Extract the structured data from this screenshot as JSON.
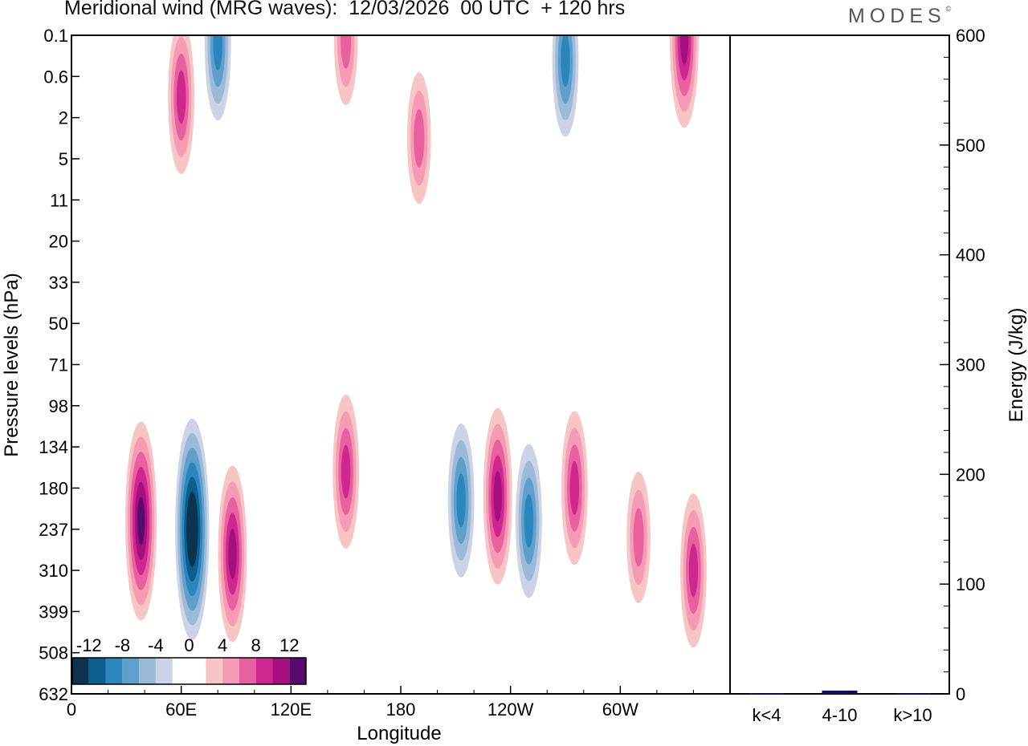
{
  "header": {
    "title": "Meridional wind (MRG waves):  12/03/2026  00 UTC  + 120 hrs",
    "brand": "MODES",
    "brand_mark": "©"
  },
  "chart_data": [
    {
      "type": "heatmap",
      "title": "Meridional wind (MRG waves)",
      "xlabel": "Longitude",
      "ylabel": "Pressure levels (hPa)",
      "x_ticks": [
        "0",
        "60E",
        "120E",
        "180",
        "120W",
        "60W"
      ],
      "x_tick_lon": [
        0,
        60,
        120,
        180,
        240,
        300
      ],
      "xlim": [
        0,
        360
      ],
      "y_ticks": [
        "0.1",
        "0.6",
        "2",
        "5",
        "11",
        "20",
        "33",
        "50",
        "71",
        "98",
        "134",
        "180",
        "237",
        "310",
        "399",
        "508",
        "632"
      ],
      "colorbar": {
        "labels": [
          "-12",
          "-8",
          "-4",
          "0",
          "4",
          "8",
          "12"
        ],
        "levels": [
          -14,
          -12,
          -10,
          -8,
          -6,
          -4,
          -2,
          0,
          2,
          4,
          6,
          8,
          10,
          12,
          14
        ],
        "colors": [
          "#0c3350",
          "#0c5e8c",
          "#2a86bd",
          "#5f9fcb",
          "#9bbad8",
          "#cdd3e6",
          "#ffffff",
          "#ffffff",
          "#f8c5c5",
          "#f69bb6",
          "#e9609f",
          "#cf2690",
          "#a60f7e",
          "#5a0a6e"
        ]
      },
      "anomalies": [
        {
          "lon": 38,
          "level_index": 11.8,
          "value": 11
        },
        {
          "lon": 66,
          "level_index": 12.0,
          "value": -14
        },
        {
          "lon": 88,
          "level_index": 12.6,
          "value": 10
        },
        {
          "lon": 150,
          "level_index": 10.6,
          "value": 8
        },
        {
          "lon": 213,
          "level_index": 11.3,
          "value": -8
        },
        {
          "lon": 233,
          "level_index": 11.2,
          "value": 10
        },
        {
          "lon": 250,
          "level_index": 11.8,
          "value": -7
        },
        {
          "lon": 275,
          "level_index": 11.0,
          "value": 7
        },
        {
          "lon": 310,
          "level_index": 12.2,
          "value": 6
        },
        {
          "lon": 340,
          "level_index": 13.0,
          "value": 7
        },
        {
          "lon": 80,
          "level_index": 0.2,
          "value": -8
        },
        {
          "lon": 150,
          "level_index": 0.1,
          "value": 6
        },
        {
          "lon": 270,
          "level_index": 0.6,
          "value": -8
        },
        {
          "lon": 335,
          "level_index": 0.1,
          "value": 9
        },
        {
          "lon": 60,
          "level_index": 1.5,
          "value": 7
        },
        {
          "lon": 190,
          "level_index": 2.5,
          "value": 5
        }
      ]
    },
    {
      "type": "bar",
      "ylabel": "Energy (J/kg)",
      "ylim": [
        0,
        600
      ],
      "y_ticks": [
        "0",
        "100",
        "200",
        "300",
        "400",
        "500",
        "600"
      ],
      "categories": [
        "k<4",
        "4-10",
        "k>10"
      ],
      "values": [
        0.5,
        3,
        0.5
      ],
      "bar_color": "#0d0d6e"
    }
  ]
}
